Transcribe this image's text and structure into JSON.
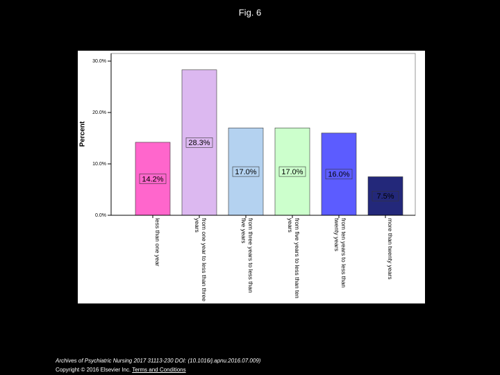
{
  "chart_data": {
    "type": "bar",
    "title": "Fig. 6",
    "y_label": "Percent",
    "categories": [
      "less than one year",
      "from one year to less than three years",
      "from three years to less than five years",
      "from five years to less than ten years",
      "from ten years to less than twenty years",
      "more than twenty years"
    ],
    "values": [
      14.2,
      28.3,
      17.0,
      17.0,
      16.0,
      7.5
    ],
    "value_labels": [
      "14.2%",
      "28.3%",
      "17.0%",
      "17.0%",
      "16.0%",
      "7.5%"
    ],
    "colors": [
      "#ff66cc",
      "#dcb8f0",
      "#b4d2f0",
      "#ccffcc",
      "#5c5cff",
      "#23287a"
    ],
    "ylim": [
      0,
      30
    ],
    "yticks": [
      {
        "value": 0,
        "label": "0.0%"
      },
      {
        "value": 10,
        "label": "10.0%"
      },
      {
        "value": 20,
        "label": "20.0%"
      },
      {
        "value": 30,
        "label": "30.0%"
      }
    ]
  },
  "footer": {
    "citation": "Archives of Psychiatric Nursing 2017 31113-230 DOI: (10.1016/j.apnu.2016.07.009)",
    "copyright": "Copyright © 2016 Elsevier Inc.",
    "link": "Terms and Conditions"
  }
}
